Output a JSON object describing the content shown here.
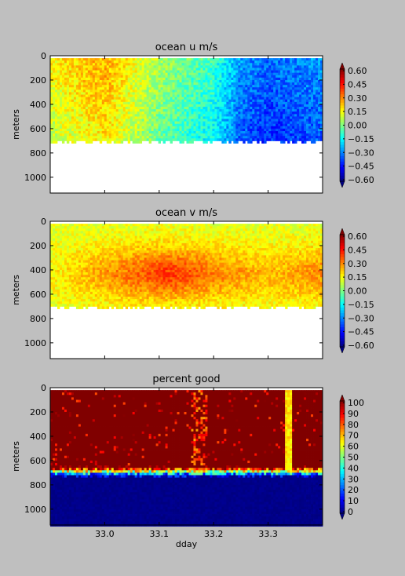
{
  "chart_data": [
    {
      "type": "heatmap",
      "title": "ocean u m/s",
      "ylabel": "meters",
      "xlabel": "",
      "xlim": [
        32.9,
        33.4
      ],
      "ylim": [
        1130,
        0
      ],
      "yticks": [
        0,
        200,
        400,
        600,
        800,
        1000
      ],
      "xticks": [],
      "colorbar": {
        "min": -0.6,
        "max": 0.6,
        "ticks": [
          "0.60",
          "0.45",
          "0.30",
          "0.15",
          "0.00",
          "−0.15",
          "−0.30",
          "−0.45",
          "−0.60"
        ],
        "colormap": "jet",
        "extend": "both"
      },
      "field": {
        "kind": "u",
        "bottom_depth_m": 700,
        "time_rows": [
          [
            32.9,
            0.12
          ],
          [
            33.0,
            0.22
          ],
          [
            33.1,
            0.02
          ],
          [
            33.2,
            -0.12
          ],
          [
            33.25,
            -0.3
          ],
          [
            33.3,
            -0.36
          ],
          [
            33.4,
            -0.3
          ]
        ]
      }
    },
    {
      "type": "heatmap",
      "title": "ocean v m/s",
      "ylabel": "meters",
      "xlabel": "",
      "xlim": [
        32.9,
        33.4
      ],
      "ylim": [
        1130,
        0
      ],
      "yticks": [
        0,
        200,
        400,
        600,
        800,
        1000
      ],
      "xticks": [],
      "colorbar": {
        "min": -0.6,
        "max": 0.6,
        "ticks": [
          "0.60",
          "0.45",
          "0.30",
          "0.15",
          "0.00",
          "−0.15",
          "−0.30",
          "−0.45",
          "−0.60"
        ],
        "colormap": "jet",
        "extend": "both"
      },
      "field": {
        "kind": "v",
        "bottom_depth_m": 700,
        "time_rows": [
          [
            32.9,
            0.15
          ],
          [
            33.05,
            0.32
          ],
          [
            33.12,
            0.38
          ],
          [
            33.2,
            0.3
          ],
          [
            33.3,
            0.22
          ],
          [
            33.4,
            0.28
          ]
        ]
      }
    },
    {
      "type": "heatmap",
      "title": "percent good",
      "ylabel": "meters",
      "xlabel": "dday",
      "xlim": [
        32.9,
        33.4
      ],
      "ylim": [
        1130,
        0
      ],
      "yticks": [
        0,
        200,
        400,
        600,
        800,
        1000
      ],
      "xticks": [
        "33.0",
        "33.1",
        "33.2",
        "33.3"
      ],
      "xtick_values": [
        33.0,
        33.1,
        33.2,
        33.3
      ],
      "colorbar": {
        "min": 0,
        "max": 100,
        "ticks": [
          "100",
          "90",
          "80",
          "70",
          "60",
          "50",
          "40",
          "30",
          "20",
          "10",
          "0"
        ],
        "colormap": "jet",
        "extend": "both"
      },
      "field": {
        "kind": "pg",
        "good_value": 100,
        "bad_value": 0,
        "transition_depth_m": 680
      }
    }
  ]
}
